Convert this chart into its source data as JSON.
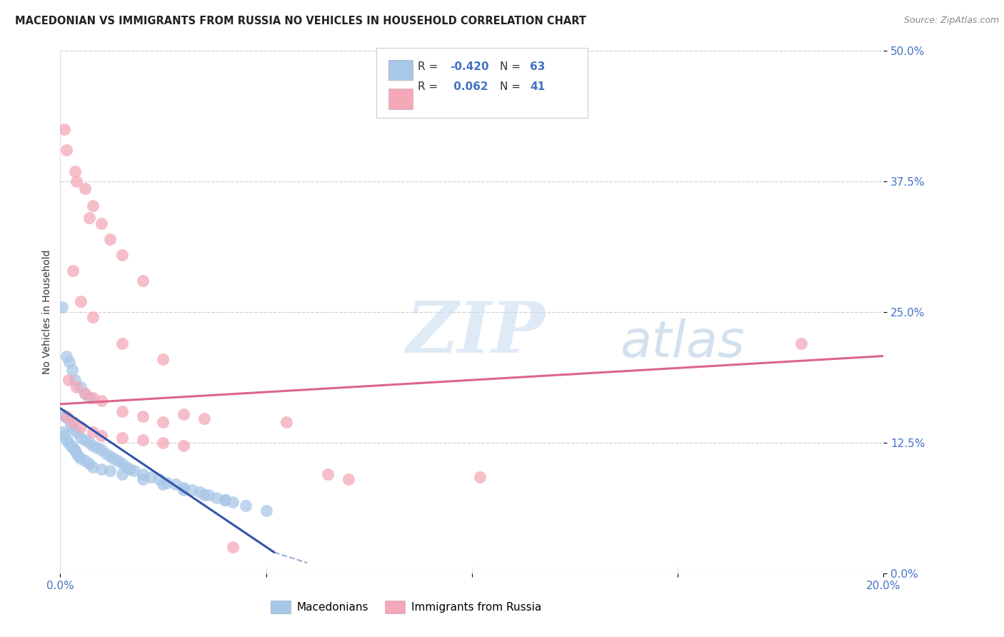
{
  "title": "MACEDONIAN VS IMMIGRANTS FROM RUSSIA NO VEHICLES IN HOUSEHOLD CORRELATION CHART",
  "source": "Source: ZipAtlas.com",
  "ylabel": "No Vehicles in Household",
  "ytick_vals": [
    0.0,
    12.5,
    25.0,
    37.5,
    50.0
  ],
  "xlim": [
    0.0,
    20.0
  ],
  "ylim": [
    0.0,
    50.0
  ],
  "legend_r_blue": "-0.420",
  "legend_n_blue": "63",
  "legend_r_pink": " 0.062",
  "legend_n_pink": "41",
  "blue_color": "#a8c8e8",
  "pink_color": "#f4a8b8",
  "blue_line_color": "#3355aa",
  "pink_line_color": "#dd6688",
  "watermark_ZIP": "ZIP",
  "watermark_atlas": "atlas",
  "blue_scatter": [
    [
      0.05,
      25.5
    ],
    [
      0.15,
      20.8
    ],
    [
      0.22,
      20.2
    ],
    [
      0.28,
      19.5
    ],
    [
      0.35,
      18.5
    ],
    [
      0.5,
      17.8
    ],
    [
      0.6,
      17.2
    ],
    [
      0.7,
      16.8
    ],
    [
      0.05,
      15.2
    ],
    [
      0.12,
      15.0
    ],
    [
      0.18,
      14.8
    ],
    [
      0.25,
      14.2
    ],
    [
      0.32,
      13.8
    ],
    [
      0.4,
      13.5
    ],
    [
      0.5,
      13.0
    ],
    [
      0.6,
      12.8
    ],
    [
      0.7,
      12.5
    ],
    [
      0.8,
      12.2
    ],
    [
      0.9,
      12.0
    ],
    [
      1.0,
      11.8
    ],
    [
      1.1,
      11.5
    ],
    [
      1.2,
      11.2
    ],
    [
      1.3,
      11.0
    ],
    [
      1.4,
      10.8
    ],
    [
      1.5,
      10.5
    ],
    [
      1.6,
      10.2
    ],
    [
      1.7,
      10.0
    ],
    [
      1.8,
      9.8
    ],
    [
      2.0,
      9.5
    ],
    [
      2.2,
      9.2
    ],
    [
      2.4,
      9.0
    ],
    [
      2.6,
      8.7
    ],
    [
      2.8,
      8.5
    ],
    [
      3.0,
      8.2
    ],
    [
      3.2,
      8.0
    ],
    [
      3.4,
      7.8
    ],
    [
      3.6,
      7.5
    ],
    [
      3.8,
      7.2
    ],
    [
      4.0,
      7.0
    ],
    [
      4.2,
      6.8
    ],
    [
      0.05,
      13.5
    ],
    [
      0.1,
      13.2
    ],
    [
      0.15,
      12.8
    ],
    [
      0.2,
      12.5
    ],
    [
      0.25,
      12.2
    ],
    [
      0.3,
      12.0
    ],
    [
      0.35,
      11.8
    ],
    [
      0.4,
      11.5
    ],
    [
      0.45,
      11.2
    ],
    [
      0.5,
      11.0
    ],
    [
      0.6,
      10.8
    ],
    [
      0.7,
      10.5
    ],
    [
      0.8,
      10.2
    ],
    [
      1.0,
      10.0
    ],
    [
      1.2,
      9.8
    ],
    [
      1.5,
      9.5
    ],
    [
      2.0,
      9.0
    ],
    [
      2.5,
      8.5
    ],
    [
      3.0,
      8.0
    ],
    [
      3.5,
      7.5
    ],
    [
      4.0,
      7.0
    ],
    [
      4.5,
      6.5
    ],
    [
      5.0,
      6.0
    ]
  ],
  "pink_scatter": [
    [
      0.1,
      42.5
    ],
    [
      0.15,
      40.5
    ],
    [
      0.35,
      38.5
    ],
    [
      0.6,
      36.8
    ],
    [
      0.8,
      35.2
    ],
    [
      1.0,
      33.5
    ],
    [
      1.5,
      30.5
    ],
    [
      2.0,
      28.0
    ],
    [
      0.4,
      37.5
    ],
    [
      0.7,
      34.0
    ],
    [
      1.2,
      32.0
    ],
    [
      0.3,
      29.0
    ],
    [
      0.5,
      26.0
    ],
    [
      0.8,
      24.5
    ],
    [
      1.5,
      22.0
    ],
    [
      2.5,
      20.5
    ],
    [
      0.2,
      18.5
    ],
    [
      0.4,
      17.8
    ],
    [
      0.6,
      17.2
    ],
    [
      0.8,
      16.8
    ],
    [
      1.0,
      16.5
    ],
    [
      1.5,
      15.5
    ],
    [
      2.0,
      15.0
    ],
    [
      2.5,
      14.5
    ],
    [
      3.0,
      15.2
    ],
    [
      3.5,
      14.8
    ],
    [
      0.15,
      15.0
    ],
    [
      0.3,
      14.5
    ],
    [
      0.5,
      14.0
    ],
    [
      0.8,
      13.5
    ],
    [
      1.0,
      13.2
    ],
    [
      1.5,
      13.0
    ],
    [
      2.0,
      12.8
    ],
    [
      2.5,
      12.5
    ],
    [
      3.0,
      12.2
    ],
    [
      5.5,
      14.5
    ],
    [
      6.5,
      9.5
    ],
    [
      7.0,
      9.0
    ],
    [
      10.2,
      9.2
    ],
    [
      18.0,
      22.0
    ],
    [
      4.2,
      2.5
    ]
  ],
  "blue_trend_x": [
    0.0,
    5.2
  ],
  "blue_trend_y": [
    15.8,
    2.0
  ],
  "pink_trend_x": [
    0.0,
    20.0
  ],
  "pink_trend_y": [
    16.2,
    20.8
  ]
}
